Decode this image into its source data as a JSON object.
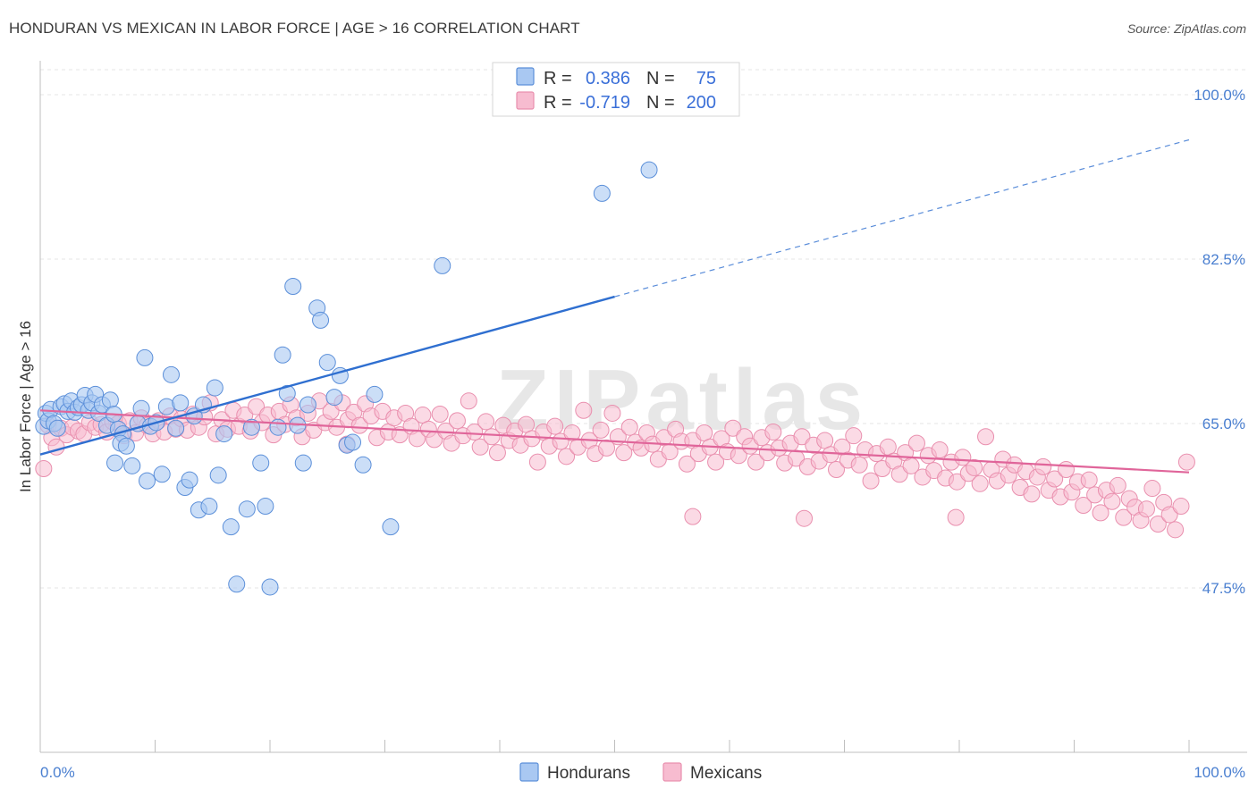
{
  "title": "HONDURAN VS MEXICAN IN LABOR FORCE | AGE > 16 CORRELATION CHART",
  "source": "Source: ZipAtlas.com",
  "watermark": "ZIPatlas",
  "colors": {
    "hondurans_fill": "#a9c8f2",
    "hondurans_stroke": "#5b8fd9",
    "hondurans_line": "#2f6fd0",
    "mexicans_fill": "#f7bcd0",
    "mexicans_stroke": "#e98fae",
    "mexicans_line": "#e0659a",
    "axis_label": "#4a7fd0"
  },
  "legend_box": {
    "rows": [
      {
        "r_label": "R =",
        "r_value": "0.386",
        "n_label": "N =",
        "n_value": "75"
      },
      {
        "r_label": "R =",
        "r_value": "-0.719",
        "n_label": "N =",
        "n_value": "200"
      }
    ]
  },
  "chart_data": {
    "type": "scatter",
    "title": "HONDURAN VS MEXICAN IN LABOR FORCE | AGE > 16 CORRELATION CHART",
    "xlabel": "",
    "ylabel": "In Labor Force | Age > 16",
    "xlim": [
      0,
      100
    ],
    "ylim": [
      30,
      102
    ],
    "x_tick_labels": [
      "0.0%",
      "100.0%"
    ],
    "y_ticks": [
      47.5,
      65.0,
      82.5,
      100.0
    ],
    "y_tick_labels": [
      "47.5%",
      "65.0%",
      "82.5%",
      "100.0%"
    ],
    "grid": true,
    "legend": [
      "Hondurans",
      "Mexicans"
    ],
    "series": [
      {
        "name": "Hondurans",
        "R": 0.386,
        "N": 75,
        "trend": {
          "x_start": 0,
          "y_start": 61.7,
          "x_solid_end": 50,
          "y_solid_end": 78.5,
          "x_dashed_end": 100,
          "y_dashed_end": 95.2
        },
        "points": [
          [
            0.3,
            64.7
          ],
          [
            0.5,
            66.1
          ],
          [
            0.7,
            65.3
          ],
          [
            0.9,
            66.5
          ],
          [
            1.2,
            65.0
          ],
          [
            1.5,
            64.5
          ],
          [
            1.8,
            66.8
          ],
          [
            2.1,
            67.1
          ],
          [
            2.4,
            66.3
          ],
          [
            2.7,
            67.4
          ],
          [
            3.0,
            66.2
          ],
          [
            3.3,
            66.7
          ],
          [
            3.6,
            67.0
          ],
          [
            3.9,
            68.0
          ],
          [
            4.2,
            66.4
          ],
          [
            4.5,
            67.2
          ],
          [
            4.8,
            68.1
          ],
          [
            5.1,
            66.1
          ],
          [
            5.4,
            67.0
          ],
          [
            5.8,
            64.8
          ],
          [
            6.1,
            67.5
          ],
          [
            6.4,
            66.0
          ],
          [
            6.8,
            64.4
          ],
          [
            7.2,
            63.9
          ],
          [
            6.5,
            60.8
          ],
          [
            7.0,
            62.9
          ],
          [
            7.5,
            62.6
          ],
          [
            8.0,
            60.5
          ],
          [
            8.5,
            65.0
          ],
          [
            8.8,
            66.6
          ],
          [
            9.3,
            58.9
          ],
          [
            9.1,
            72.0
          ],
          [
            9.6,
            64.7
          ],
          [
            10.1,
            65.1
          ],
          [
            10.6,
            59.6
          ],
          [
            11.0,
            66.8
          ],
          [
            11.4,
            70.2
          ],
          [
            11.8,
            64.5
          ],
          [
            12.2,
            67.2
          ],
          [
            12.6,
            58.2
          ],
          [
            13.0,
            59.0
          ],
          [
            13.4,
            65.8
          ],
          [
            13.8,
            55.8
          ],
          [
            14.2,
            67.0
          ],
          [
            14.7,
            56.2
          ],
          [
            15.2,
            68.8
          ],
          [
            15.5,
            59.5
          ],
          [
            16.0,
            63.9
          ],
          [
            16.6,
            54.0
          ],
          [
            17.1,
            47.9
          ],
          [
            18.0,
            55.9
          ],
          [
            18.4,
            64.6
          ],
          [
            19.2,
            60.8
          ],
          [
            19.6,
            56.2
          ],
          [
            20.0,
            47.6
          ],
          [
            20.7,
            64.6
          ],
          [
            21.1,
            72.3
          ],
          [
            21.5,
            68.2
          ],
          [
            22.0,
            79.6
          ],
          [
            22.4,
            64.8
          ],
          [
            22.9,
            60.8
          ],
          [
            23.3,
            67.0
          ],
          [
            24.1,
            77.3
          ],
          [
            24.4,
            76.0
          ],
          [
            25.0,
            71.5
          ],
          [
            25.6,
            67.8
          ],
          [
            26.1,
            70.1
          ],
          [
            26.7,
            62.7
          ],
          [
            27.2,
            63.0
          ],
          [
            28.1,
            60.6
          ],
          [
            29.1,
            68.1
          ],
          [
            30.5,
            54.0
          ],
          [
            35.0,
            81.8
          ],
          [
            48.9,
            89.5
          ],
          [
            53.0,
            92.0
          ]
        ]
      },
      {
        "name": "Mexicans",
        "R": -0.719,
        "N": 200,
        "trend": {
          "x_start": 0,
          "y_start": 66.4,
          "x_end": 100,
          "y_end": 59.8
        },
        "points": [
          [
            0.3,
            60.2
          ],
          [
            0.7,
            64.8
          ],
          [
            1.0,
            63.5
          ],
          [
            1.4,
            62.5
          ],
          [
            1.8,
            64.5
          ],
          [
            2.3,
            63.8
          ],
          [
            2.8,
            64.6
          ],
          [
            3.3,
            64.2
          ],
          [
            3.8,
            63.9
          ],
          [
            4.3,
            65.1
          ],
          [
            4.8,
            64.6
          ],
          [
            5.3,
            64.9
          ],
          [
            5.8,
            64.1
          ],
          [
            6.3,
            65.2
          ],
          [
            6.8,
            65.0
          ],
          [
            7.3,
            63.7
          ],
          [
            7.8,
            65.3
          ],
          [
            8.3,
            64.0
          ],
          [
            8.8,
            65.6
          ],
          [
            9.3,
            64.8
          ],
          [
            9.8,
            63.9
          ],
          [
            10.3,
            65.3
          ],
          [
            10.8,
            64.1
          ],
          [
            11.3,
            65.8
          ],
          [
            11.8,
            64.4
          ],
          [
            12.3,
            65.5
          ],
          [
            12.8,
            64.3
          ],
          [
            13.3,
            66.0
          ],
          [
            13.8,
            64.6
          ],
          [
            14.3,
            65.7
          ],
          [
            14.8,
            67.2
          ],
          [
            15.3,
            63.9
          ],
          [
            15.8,
            65.4
          ],
          [
            16.3,
            64.4
          ],
          [
            16.8,
            66.4
          ],
          [
            17.3,
            64.7
          ],
          [
            17.8,
            65.9
          ],
          [
            18.3,
            64.2
          ],
          [
            18.8,
            66.8
          ],
          [
            19.3,
            65.1
          ],
          [
            19.8,
            65.9
          ],
          [
            20.3,
            63.8
          ],
          [
            20.8,
            66.3
          ],
          [
            21.3,
            64.9
          ],
          [
            21.8,
            67.0
          ],
          [
            22.3,
            65.6
          ],
          [
            22.8,
            63.6
          ],
          [
            23.3,
            66.1
          ],
          [
            23.8,
            64.3
          ],
          [
            24.3,
            67.4
          ],
          [
            24.8,
            65.1
          ],
          [
            25.3,
            66.3
          ],
          [
            25.8,
            64.6
          ],
          [
            26.3,
            67.2
          ],
          [
            26.8,
            65.4
          ],
          [
            27.3,
            66.2
          ],
          [
            27.8,
            64.8
          ],
          [
            28.3,
            67.1
          ],
          [
            28.8,
            65.8
          ],
          [
            29.3,
            63.5
          ],
          [
            29.8,
            66.3
          ],
          [
            30.3,
            64.1
          ],
          [
            30.8,
            65.6
          ],
          [
            31.3,
            63.8
          ],
          [
            31.8,
            66.1
          ],
          [
            32.3,
            64.7
          ],
          [
            32.8,
            63.4
          ],
          [
            33.3,
            65.9
          ],
          [
            33.8,
            64.4
          ],
          [
            34.3,
            63.3
          ],
          [
            34.8,
            66.0
          ],
          [
            35.3,
            64.2
          ],
          [
            35.8,
            62.9
          ],
          [
            36.3,
            65.3
          ],
          [
            36.8,
            63.7
          ],
          [
            37.3,
            67.4
          ],
          [
            37.8,
            64.1
          ],
          [
            38.3,
            62.5
          ],
          [
            38.8,
            65.2
          ],
          [
            39.3,
            63.6
          ],
          [
            39.8,
            61.9
          ],
          [
            40.3,
            64.8
          ],
          [
            40.8,
            63.2
          ],
          [
            41.3,
            64.2
          ],
          [
            41.8,
            62.7
          ],
          [
            42.3,
            64.9
          ],
          [
            42.8,
            63.4
          ],
          [
            43.3,
            60.9
          ],
          [
            43.8,
            64.1
          ],
          [
            44.3,
            62.6
          ],
          [
            44.8,
            64.7
          ],
          [
            45.3,
            63.1
          ],
          [
            45.8,
            61.5
          ],
          [
            46.3,
            64.0
          ],
          [
            46.8,
            62.5
          ],
          [
            47.3,
            66.4
          ],
          [
            47.8,
            63.2
          ],
          [
            48.3,
            61.8
          ],
          [
            48.8,
            64.3
          ],
          [
            49.3,
            62.4
          ],
          [
            49.8,
            66.1
          ],
          [
            50.3,
            63.6
          ],
          [
            50.8,
            61.9
          ],
          [
            51.3,
            64.6
          ],
          [
            51.8,
            63.0
          ],
          [
            52.3,
            62.4
          ],
          [
            52.8,
            64.0
          ],
          [
            53.3,
            62.8
          ],
          [
            53.8,
            61.2
          ],
          [
            54.3,
            63.5
          ],
          [
            54.8,
            62.0
          ],
          [
            55.3,
            64.4
          ],
          [
            55.8,
            63.1
          ],
          [
            56.3,
            60.7
          ],
          [
            56.8,
            63.2
          ],
          [
            57.3,
            61.8
          ],
          [
            57.8,
            64.0
          ],
          [
            58.3,
            62.5
          ],
          [
            58.8,
            60.9
          ],
          [
            59.3,
            63.4
          ],
          [
            59.8,
            62.0
          ],
          [
            60.3,
            64.5
          ],
          [
            60.8,
            61.6
          ],
          [
            61.3,
            63.6
          ],
          [
            61.8,
            62.6
          ],
          [
            62.3,
            60.9
          ],
          [
            62.8,
            63.5
          ],
          [
            63.3,
            61.9
          ],
          [
            63.8,
            64.1
          ],
          [
            64.3,
            62.4
          ],
          [
            64.8,
            60.8
          ],
          [
            65.3,
            62.9
          ],
          [
            65.8,
            61.3
          ],
          [
            66.3,
            63.6
          ],
          [
            66.8,
            60.4
          ],
          [
            67.3,
            62.7
          ],
          [
            67.8,
            61.0
          ],
          [
            68.3,
            63.2
          ],
          [
            68.8,
            61.7
          ],
          [
            69.3,
            60.1
          ],
          [
            69.8,
            62.5
          ],
          [
            70.3,
            61.1
          ],
          [
            70.8,
            63.7
          ],
          [
            71.3,
            60.6
          ],
          [
            71.8,
            62.2
          ],
          [
            72.3,
            58.9
          ],
          [
            72.8,
            61.8
          ],
          [
            73.3,
            60.2
          ],
          [
            73.8,
            62.5
          ],
          [
            74.3,
            61.0
          ],
          [
            74.8,
            59.6
          ],
          [
            75.3,
            61.9
          ],
          [
            75.8,
            60.5
          ],
          [
            76.3,
            62.9
          ],
          [
            76.8,
            59.3
          ],
          [
            77.3,
            61.6
          ],
          [
            77.8,
            60.0
          ],
          [
            78.3,
            62.2
          ],
          [
            78.8,
            59.2
          ],
          [
            79.3,
            60.9
          ],
          [
            79.8,
            58.8
          ],
          [
            80.3,
            61.4
          ],
          [
            80.8,
            59.7
          ],
          [
            81.3,
            60.3
          ],
          [
            81.8,
            58.6
          ],
          [
            82.3,
            63.6
          ],
          [
            82.8,
            60.1
          ],
          [
            83.3,
            58.9
          ],
          [
            83.8,
            61.2
          ],
          [
            84.3,
            59.5
          ],
          [
            84.8,
            60.6
          ],
          [
            85.3,
            58.2
          ],
          [
            85.8,
            59.9
          ],
          [
            86.3,
            57.5
          ],
          [
            86.8,
            59.3
          ],
          [
            87.3,
            60.4
          ],
          [
            87.8,
            57.9
          ],
          [
            88.3,
            59.1
          ],
          [
            88.8,
            57.2
          ],
          [
            89.3,
            60.1
          ],
          [
            89.8,
            57.7
          ],
          [
            90.3,
            58.8
          ],
          [
            90.8,
            56.3
          ],
          [
            91.3,
            59.0
          ],
          [
            91.8,
            57.4
          ],
          [
            92.3,
            55.5
          ],
          [
            92.8,
            57.9
          ],
          [
            93.3,
            56.7
          ],
          [
            93.8,
            58.4
          ],
          [
            94.3,
            55.0
          ],
          [
            94.8,
            57.0
          ],
          [
            95.3,
            56.1
          ],
          [
            95.8,
            54.7
          ],
          [
            96.3,
            55.9
          ],
          [
            96.8,
            58.1
          ],
          [
            97.3,
            54.3
          ],
          [
            97.8,
            56.6
          ],
          [
            98.3,
            55.3
          ],
          [
            98.8,
            53.7
          ],
          [
            99.3,
            56.2
          ],
          [
            99.8,
            60.9
          ],
          [
            26.7,
            62.8
          ],
          [
            56.8,
            55.1
          ],
          [
            66.5,
            54.9
          ],
          [
            79.7,
            55.0
          ]
        ]
      }
    ]
  },
  "bottom_legend": {
    "items": [
      {
        "label": "Hondurans"
      },
      {
        "label": "Mexicans"
      }
    ]
  }
}
